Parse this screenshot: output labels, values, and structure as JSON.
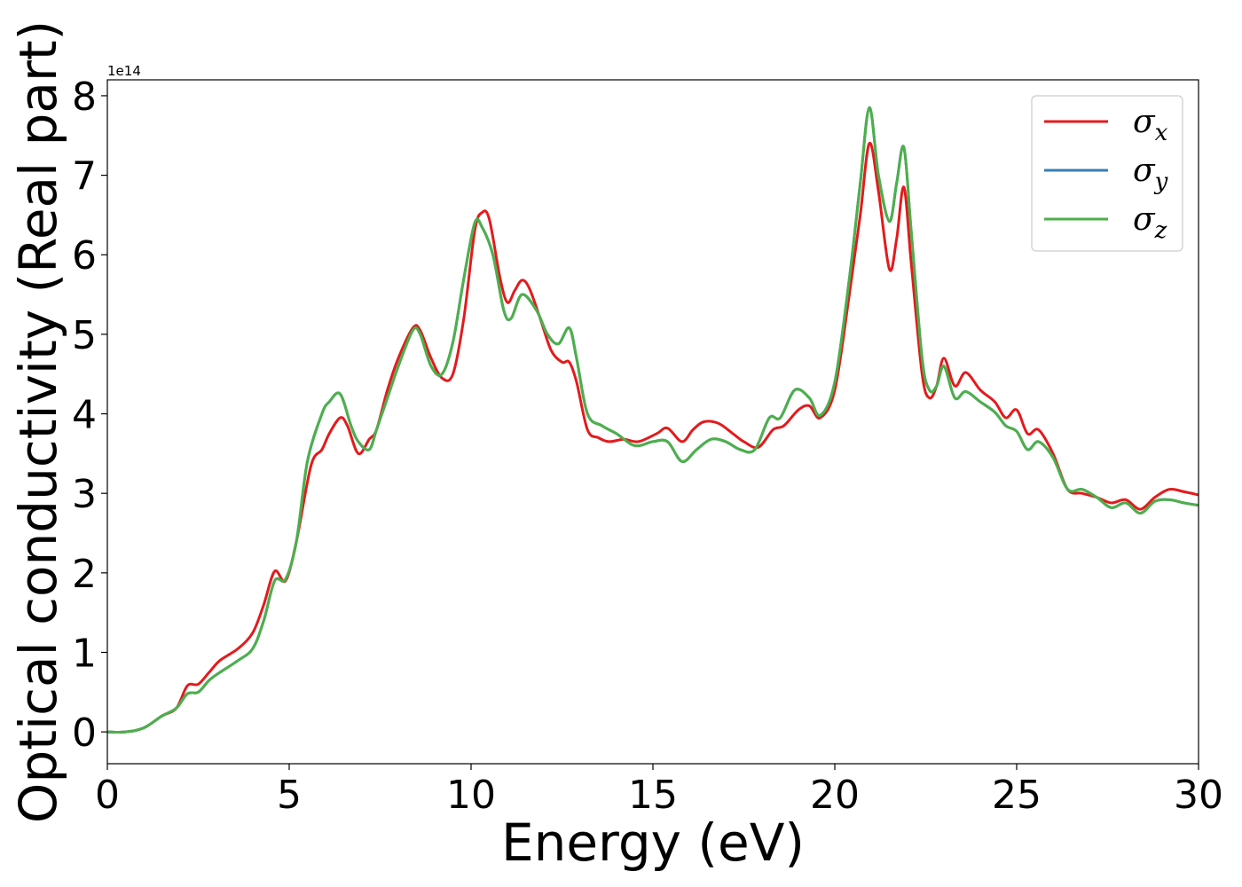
{
  "chart_data": {
    "type": "line",
    "xlabel": "Energy (eV)",
    "ylabel": "Optical conductivity (Real part)",
    "y_offset_label": "1e14",
    "xlim": [
      0,
      30
    ],
    "ylim": [
      -0.4,
      8.2
    ],
    "x_ticks": [
      0,
      5,
      10,
      15,
      20,
      25,
      30
    ],
    "y_ticks": [
      0,
      1,
      2,
      3,
      4,
      5,
      6,
      7,
      8
    ],
    "grid": false,
    "legend_position": "top-right",
    "series": [
      {
        "name": "σ_x",
        "legend_base": "σ",
        "legend_sub": "x",
        "color": "#e41a1c",
        "points": [
          [
            0,
            0
          ],
          [
            0.5,
            0
          ],
          [
            1,
            0.05
          ],
          [
            1.5,
            0.2
          ],
          [
            1.9,
            0.3
          ],
          [
            2.2,
            0.58
          ],
          [
            2.5,
            0.6
          ],
          [
            2.8,
            0.75
          ],
          [
            3.1,
            0.9
          ],
          [
            3.6,
            1.05
          ],
          [
            4.0,
            1.25
          ],
          [
            4.3,
            1.6
          ],
          [
            4.6,
            2.02
          ],
          [
            4.9,
            1.9
          ],
          [
            5.2,
            2.4
          ],
          [
            5.6,
            3.35
          ],
          [
            5.9,
            3.55
          ],
          [
            6.1,
            3.75
          ],
          [
            6.4,
            3.95
          ],
          [
            6.6,
            3.85
          ],
          [
            6.9,
            3.5
          ],
          [
            7.2,
            3.68
          ],
          [
            7.4,
            3.8
          ],
          [
            7.7,
            4.3
          ],
          [
            8.0,
            4.7
          ],
          [
            8.4,
            5.08
          ],
          [
            8.6,
            5.05
          ],
          [
            8.9,
            4.7
          ],
          [
            9.2,
            4.45
          ],
          [
            9.5,
            4.5
          ],
          [
            9.8,
            5.2
          ],
          [
            10.1,
            6.3
          ],
          [
            10.3,
            6.53
          ],
          [
            10.5,
            6.45
          ],
          [
            10.8,
            5.7
          ],
          [
            11.0,
            5.4
          ],
          [
            11.2,
            5.55
          ],
          [
            11.4,
            5.68
          ],
          [
            11.6,
            5.58
          ],
          [
            11.9,
            5.2
          ],
          [
            12.2,
            4.8
          ],
          [
            12.5,
            4.65
          ],
          [
            12.7,
            4.65
          ],
          [
            12.9,
            4.4
          ],
          [
            13.2,
            3.8
          ],
          [
            13.5,
            3.7
          ],
          [
            13.8,
            3.65
          ],
          [
            14.2,
            3.68
          ],
          [
            14.6,
            3.65
          ],
          [
            15.1,
            3.75
          ],
          [
            15.4,
            3.82
          ],
          [
            15.8,
            3.65
          ],
          [
            16.1,
            3.8
          ],
          [
            16.4,
            3.9
          ],
          [
            16.8,
            3.88
          ],
          [
            17.2,
            3.75
          ],
          [
            17.5,
            3.65
          ],
          [
            17.9,
            3.58
          ],
          [
            18.3,
            3.8
          ],
          [
            18.6,
            3.85
          ],
          [
            19.0,
            4.05
          ],
          [
            19.3,
            4.1
          ],
          [
            19.6,
            3.95
          ],
          [
            20.0,
            4.3
          ],
          [
            20.4,
            5.5
          ],
          [
            20.7,
            6.5
          ],
          [
            20.95,
            7.4
          ],
          [
            21.2,
            6.8
          ],
          [
            21.5,
            5.82
          ],
          [
            21.7,
            6.2
          ],
          [
            21.9,
            6.85
          ],
          [
            22.1,
            5.9
          ],
          [
            22.4,
            4.5
          ],
          [
            22.6,
            4.2
          ],
          [
            22.8,
            4.35
          ],
          [
            23.0,
            4.7
          ],
          [
            23.3,
            4.35
          ],
          [
            23.6,
            4.52
          ],
          [
            24.0,
            4.3
          ],
          [
            24.4,
            4.15
          ],
          [
            24.7,
            3.95
          ],
          [
            25.0,
            4.05
          ],
          [
            25.3,
            3.75
          ],
          [
            25.6,
            3.8
          ],
          [
            26.0,
            3.5
          ],
          [
            26.4,
            3.05
          ],
          [
            26.8,
            3.0
          ],
          [
            27.2,
            2.95
          ],
          [
            27.6,
            2.88
          ],
          [
            28.0,
            2.92
          ],
          [
            28.4,
            2.8
          ],
          [
            28.8,
            2.95
          ],
          [
            29.2,
            3.05
          ],
          [
            29.6,
            3.02
          ],
          [
            30,
            2.98
          ]
        ]
      },
      {
        "name": "σ_y",
        "legend_base": "σ",
        "legend_sub": "y",
        "color": "#377eb8",
        "points": [
          [
            0,
            0
          ],
          [
            0.5,
            0
          ],
          [
            1,
            0.05
          ],
          [
            1.5,
            0.2
          ],
          [
            1.9,
            0.3
          ],
          [
            2.2,
            0.48
          ],
          [
            2.5,
            0.5
          ],
          [
            2.8,
            0.65
          ],
          [
            3.1,
            0.75
          ],
          [
            3.6,
            0.9
          ],
          [
            4.0,
            1.05
          ],
          [
            4.3,
            1.4
          ],
          [
            4.6,
            1.9
          ],
          [
            4.9,
            1.92
          ],
          [
            5.2,
            2.4
          ],
          [
            5.5,
            3.4
          ],
          [
            5.9,
            4.0
          ],
          [
            6.1,
            4.15
          ],
          [
            6.4,
            4.25
          ],
          [
            6.7,
            3.85
          ],
          [
            6.9,
            3.65
          ],
          [
            7.2,
            3.55
          ],
          [
            7.4,
            3.8
          ],
          [
            7.7,
            4.2
          ],
          [
            8.0,
            4.6
          ],
          [
            8.4,
            5.05
          ],
          [
            8.6,
            5.0
          ],
          [
            8.9,
            4.6
          ],
          [
            9.2,
            4.5
          ],
          [
            9.5,
            4.9
          ],
          [
            9.8,
            5.7
          ],
          [
            10.1,
            6.4
          ],
          [
            10.3,
            6.35
          ],
          [
            10.6,
            6.0
          ],
          [
            10.9,
            5.3
          ],
          [
            11.1,
            5.2
          ],
          [
            11.4,
            5.5
          ],
          [
            11.8,
            5.3
          ],
          [
            12.1,
            5.0
          ],
          [
            12.4,
            4.88
          ],
          [
            12.7,
            5.08
          ],
          [
            12.9,
            4.7
          ],
          [
            13.2,
            4.0
          ],
          [
            13.6,
            3.85
          ],
          [
            14.0,
            3.75
          ],
          [
            14.5,
            3.6
          ],
          [
            15.0,
            3.65
          ],
          [
            15.4,
            3.65
          ],
          [
            15.8,
            3.4
          ],
          [
            16.2,
            3.55
          ],
          [
            16.6,
            3.68
          ],
          [
            17.0,
            3.65
          ],
          [
            17.4,
            3.55
          ],
          [
            17.8,
            3.55
          ],
          [
            18.2,
            3.95
          ],
          [
            18.5,
            3.95
          ],
          [
            18.9,
            4.3
          ],
          [
            19.3,
            4.2
          ],
          [
            19.6,
            3.98
          ],
          [
            20.0,
            4.4
          ],
          [
            20.4,
            5.7
          ],
          [
            20.7,
            6.9
          ],
          [
            20.95,
            7.85
          ],
          [
            21.2,
            7.0
          ],
          [
            21.5,
            6.42
          ],
          [
            21.7,
            6.9
          ],
          [
            21.9,
            7.35
          ],
          [
            22.1,
            6.3
          ],
          [
            22.4,
            4.7
          ],
          [
            22.6,
            4.3
          ],
          [
            22.8,
            4.35
          ],
          [
            23.0,
            4.6
          ],
          [
            23.3,
            4.2
          ],
          [
            23.6,
            4.28
          ],
          [
            24.0,
            4.15
          ],
          [
            24.4,
            4.02
          ],
          [
            24.7,
            3.85
          ],
          [
            25.0,
            3.78
          ],
          [
            25.3,
            3.55
          ],
          [
            25.6,
            3.65
          ],
          [
            26.0,
            3.45
          ],
          [
            26.4,
            3.05
          ],
          [
            26.8,
            3.05
          ],
          [
            27.2,
            2.95
          ],
          [
            27.6,
            2.82
          ],
          [
            28.0,
            2.88
          ],
          [
            28.4,
            2.75
          ],
          [
            28.8,
            2.9
          ],
          [
            29.2,
            2.92
          ],
          [
            29.6,
            2.88
          ],
          [
            30,
            2.85
          ]
        ]
      },
      {
        "name": "σ_z",
        "legend_base": "σ",
        "legend_sub": "z",
        "color": "#4daf4a",
        "points": [
          [
            0,
            0
          ],
          [
            0.5,
            0
          ],
          [
            1,
            0.05
          ],
          [
            1.5,
            0.2
          ],
          [
            1.9,
            0.3
          ],
          [
            2.2,
            0.48
          ],
          [
            2.5,
            0.5
          ],
          [
            2.8,
            0.65
          ],
          [
            3.1,
            0.75
          ],
          [
            3.6,
            0.9
          ],
          [
            4.0,
            1.05
          ],
          [
            4.3,
            1.4
          ],
          [
            4.6,
            1.9
          ],
          [
            4.9,
            1.92
          ],
          [
            5.2,
            2.4
          ],
          [
            5.5,
            3.4
          ],
          [
            5.9,
            4.0
          ],
          [
            6.1,
            4.15
          ],
          [
            6.4,
            4.25
          ],
          [
            6.7,
            3.85
          ],
          [
            6.9,
            3.65
          ],
          [
            7.2,
            3.55
          ],
          [
            7.4,
            3.8
          ],
          [
            7.7,
            4.2
          ],
          [
            8.0,
            4.6
          ],
          [
            8.4,
            5.05
          ],
          [
            8.6,
            5.0
          ],
          [
            8.9,
            4.6
          ],
          [
            9.2,
            4.5
          ],
          [
            9.5,
            4.9
          ],
          [
            9.8,
            5.7
          ],
          [
            10.1,
            6.4
          ],
          [
            10.3,
            6.35
          ],
          [
            10.6,
            6.0
          ],
          [
            10.9,
            5.3
          ],
          [
            11.1,
            5.2
          ],
          [
            11.4,
            5.5
          ],
          [
            11.8,
            5.3
          ],
          [
            12.1,
            5.0
          ],
          [
            12.4,
            4.88
          ],
          [
            12.7,
            5.08
          ],
          [
            12.9,
            4.7
          ],
          [
            13.2,
            4.0
          ],
          [
            13.6,
            3.85
          ],
          [
            14.0,
            3.75
          ],
          [
            14.5,
            3.6
          ],
          [
            15.0,
            3.65
          ],
          [
            15.4,
            3.65
          ],
          [
            15.8,
            3.4
          ],
          [
            16.2,
            3.55
          ],
          [
            16.6,
            3.68
          ],
          [
            17.0,
            3.65
          ],
          [
            17.4,
            3.55
          ],
          [
            17.8,
            3.55
          ],
          [
            18.2,
            3.95
          ],
          [
            18.5,
            3.95
          ],
          [
            18.9,
            4.3
          ],
          [
            19.3,
            4.2
          ],
          [
            19.6,
            3.98
          ],
          [
            20.0,
            4.4
          ],
          [
            20.4,
            5.7
          ],
          [
            20.7,
            6.9
          ],
          [
            20.95,
            7.85
          ],
          [
            21.2,
            7.0
          ],
          [
            21.5,
            6.42
          ],
          [
            21.7,
            6.9
          ],
          [
            21.9,
            7.35
          ],
          [
            22.1,
            6.3
          ],
          [
            22.4,
            4.7
          ],
          [
            22.6,
            4.3
          ],
          [
            22.8,
            4.35
          ],
          [
            23.0,
            4.6
          ],
          [
            23.3,
            4.2
          ],
          [
            23.6,
            4.28
          ],
          [
            24.0,
            4.15
          ],
          [
            24.4,
            4.02
          ],
          [
            24.7,
            3.85
          ],
          [
            25.0,
            3.78
          ],
          [
            25.3,
            3.55
          ],
          [
            25.6,
            3.65
          ],
          [
            26.0,
            3.45
          ],
          [
            26.4,
            3.05
          ],
          [
            26.8,
            3.05
          ],
          [
            27.2,
            2.95
          ],
          [
            27.6,
            2.82
          ],
          [
            28.0,
            2.88
          ],
          [
            28.4,
            2.75
          ],
          [
            28.8,
            2.9
          ],
          [
            29.2,
            2.92
          ],
          [
            29.6,
            2.88
          ],
          [
            30,
            2.85
          ]
        ]
      }
    ]
  }
}
